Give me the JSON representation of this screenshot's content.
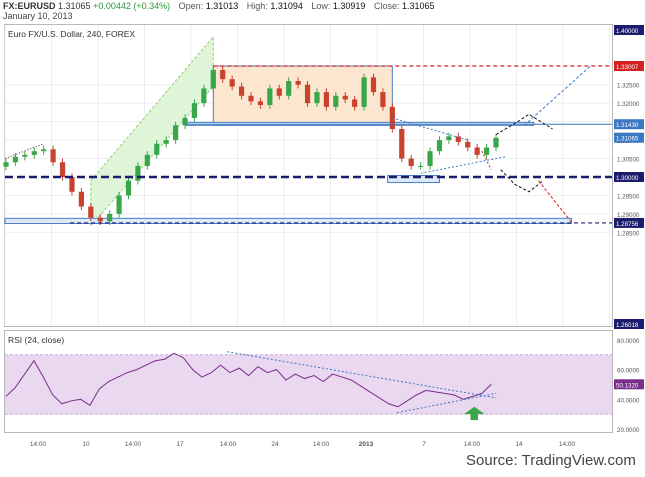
{
  "header": {
    "symbol": "FX:EURUSD",
    "last": "1.31065",
    "change": "+0.00442 (+0.34%)",
    "open_label": "Open:",
    "open": "1.31013",
    "high_label": "High:",
    "high": "1.31094",
    "low_label": "Low:",
    "low": "1.30919",
    "close_label": "Close:",
    "close": "1.31065",
    "date": "January 10, 2013"
  },
  "main_pane_label": "Euro FX/U.S. Dollar, 240, FOREX",
  "rsi_pane_label": "RSI (24, close)",
  "source_text": "Source: TradingView.com",
  "colors": {
    "up": "#3aa64a",
    "down": "#c8422e",
    "red_dash": "#d42020",
    "navy_dash": "#1c1c6e",
    "blue_dash": "#3b78c4",
    "rsi_band": "#e9d8f0",
    "rsi_line": "#7a2d8a"
  },
  "chart_data": [
    {
      "type": "candlestick",
      "title": "Euro FX/U.S. Dollar, 240, FOREX",
      "y_axis_ticks": [
        "1.32500",
        "1.32000",
        "1.31500",
        "1.31000",
        "1.30500",
        "1.29500",
        "1.29000",
        "1.28500"
      ],
      "ylim": [
        1.26,
        1.34
      ],
      "x_axis_ticks": [
        "14:00",
        "10",
        "14:00",
        "17",
        "14:00",
        "24",
        "14:00",
        "2013",
        "7",
        "14:00",
        "14",
        "14:00"
      ],
      "price_labels": {
        "top": "1.40000",
        "resistance": "1.33007",
        "mid_resistance": "1.31430",
        "last": "1.31065",
        "support": "1.30000",
        "low": "1.28756",
        "bottom": "1.26018"
      },
      "close_path": [
        1.304,
        1.3055,
        1.306,
        1.307,
        1.3075,
        1.304,
        1.3,
        1.296,
        1.292,
        1.289,
        1.288,
        1.29,
        1.295,
        1.299,
        1.303,
        1.306,
        1.309,
        1.31,
        1.314,
        1.316,
        1.32,
        1.324,
        1.329,
        1.3265,
        1.3245,
        1.322,
        1.3205,
        1.3195,
        1.324,
        1.322,
        1.326,
        1.325,
        1.32,
        1.323,
        1.319,
        1.322,
        1.321,
        1.319,
        1.327,
        1.323,
        1.319,
        1.313,
        1.305,
        1.303,
        1.303,
        1.307,
        1.31,
        1.311,
        1.3095,
        1.308,
        1.306,
        1.308,
        1.3106
      ],
      "levels": [
        1.33007,
        1.3143,
        1.3,
        1.28756
      ]
    },
    {
      "type": "line",
      "title": "RSI (24, close)",
      "y_axis_ticks": [
        "80.0000",
        "60.0000",
        "40.0000",
        "20.0000"
      ],
      "ylim": [
        18,
        86
      ],
      "last_value_label": "50.1320",
      "values": [
        42,
        48,
        57,
        66,
        55,
        43,
        37,
        39,
        40,
        36,
        47,
        52,
        55,
        58,
        60,
        63,
        66,
        67,
        71,
        68,
        60,
        55,
        58,
        63,
        58,
        61,
        56,
        62,
        58,
        60,
        53,
        57,
        54,
        56,
        52,
        57,
        55,
        53,
        49,
        45,
        41,
        37,
        35,
        39,
        43,
        46,
        45,
        44,
        43,
        40,
        42,
        44,
        50.13
      ]
    }
  ]
}
